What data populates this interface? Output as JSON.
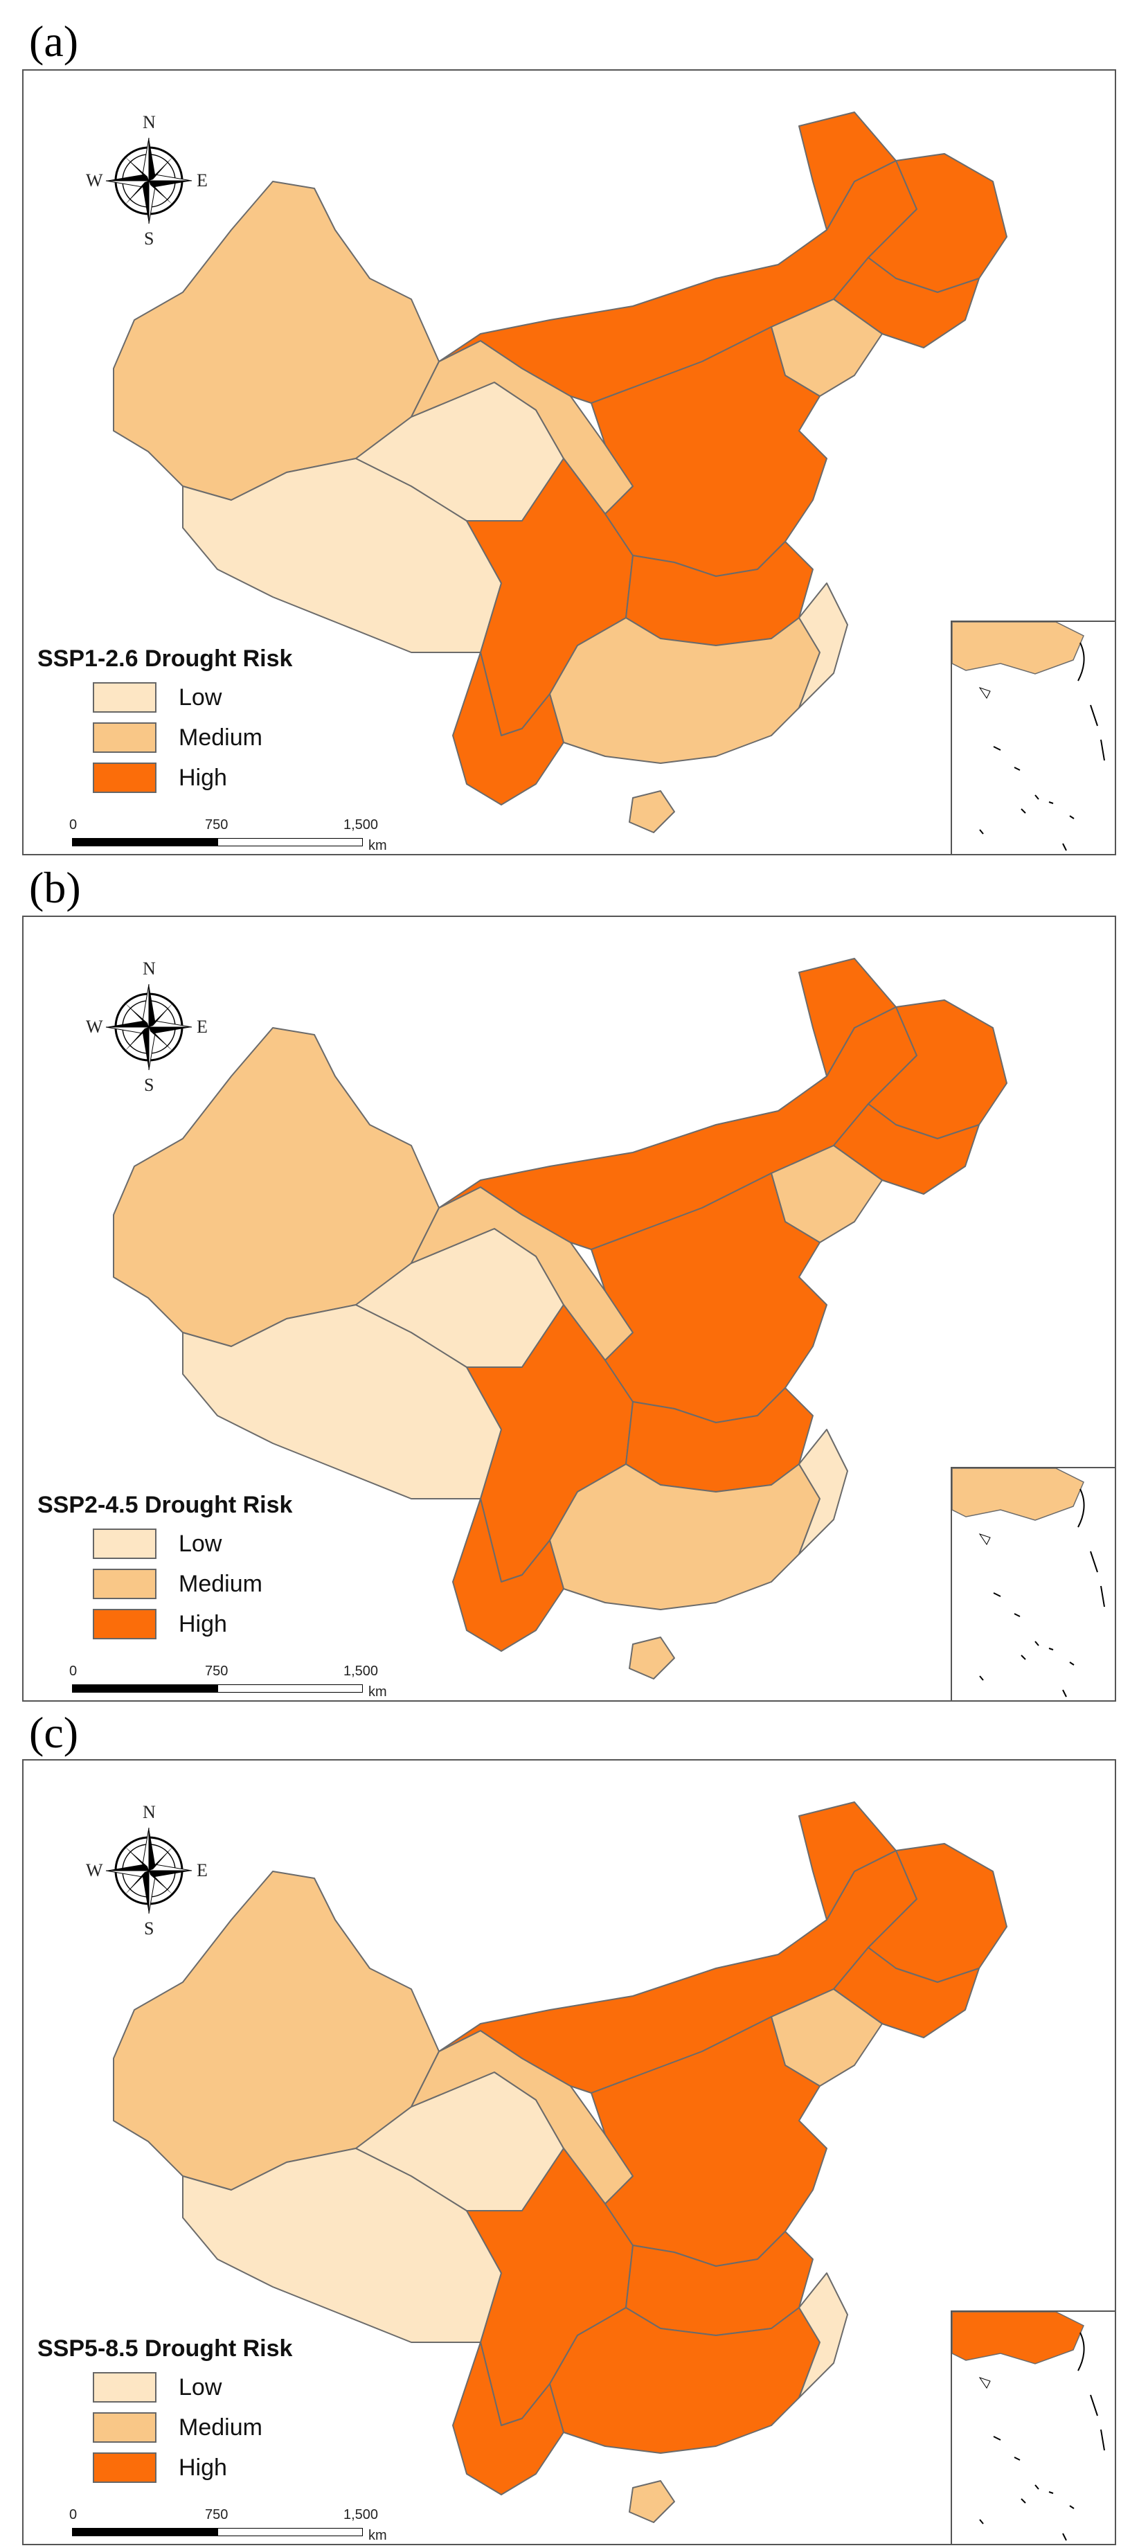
{
  "colors": {
    "low": "#fde6c4",
    "medium": "#f9c787",
    "high": "#fb6d0a",
    "border": "#6b6b6b",
    "outline": "#555555"
  },
  "compass": {
    "north": "N",
    "south": "S",
    "east": "E",
    "west": "W"
  },
  "legend": {
    "low": "Low",
    "medium": "Medium",
    "high": "High"
  },
  "scale": {
    "t0": "0",
    "t1": "750",
    "t2": "1,500",
    "unit": "km"
  },
  "panels": [
    {
      "label": "(a)",
      "title": "SSP1-2.6 Drought Risk"
    },
    {
      "label": "(b)",
      "title": "SSP2-4.5 Drought Risk"
    },
    {
      "label": "(c)",
      "title": "SSP5-8.5 Drought Risk"
    }
  ]
}
